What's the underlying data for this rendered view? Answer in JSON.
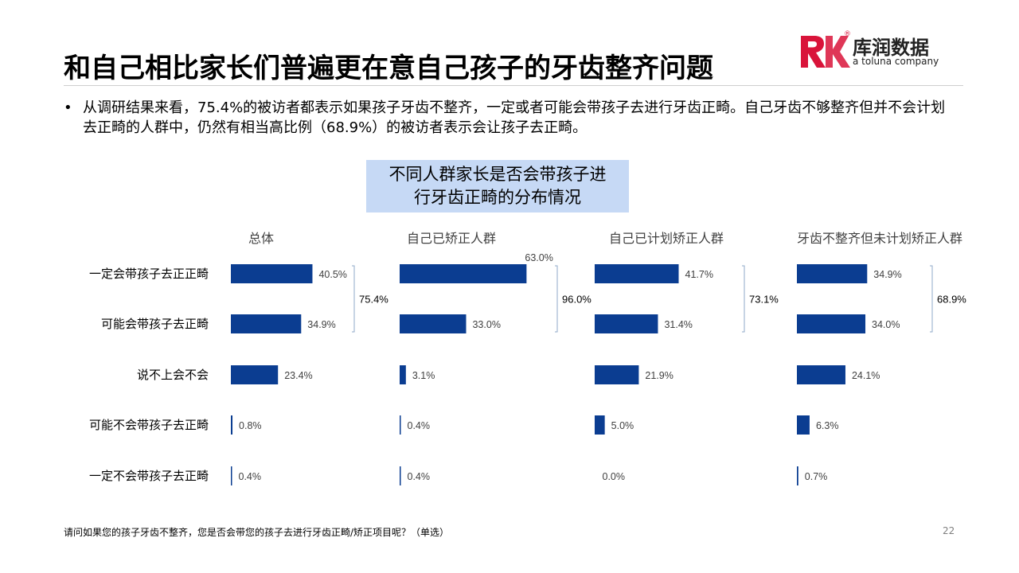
{
  "header": {
    "title": "和自己相比家长们普遍更在意自己孩子的牙齿整齐问题"
  },
  "logo": {
    "name": "库润数据",
    "tagline": "a toluna company",
    "registered_mark": "®",
    "colors": {
      "brand_red": "#d9143a"
    }
  },
  "bullet": {
    "symbol": "•",
    "text": "从调研结果来看，75.4%的被访者都表示如果孩子牙齿不整齐，一定或者可能会带孩子去进行牙齿正畸。自己牙齿不够整齐但并不会计划去正畸的人群中，仍然有相当高比例（68.9%）的被访者表示会让孩子去正畸。"
  },
  "chart_title": "不同人群家长是否会带孩子进行牙齿正畸的分布情况",
  "chart_data": {
    "type": "bar",
    "orientation": "horizontal",
    "bar_color": "#0b3d91",
    "categories": [
      "一定会带孩子去正正畸",
      "可能会带孩子去正畸",
      "说不上会不会",
      "可能不会带孩子去正畸",
      "一定不会带孩子去正畸"
    ],
    "panels": [
      {
        "name": "总体",
        "values": [
          40.5,
          34.9,
          23.4,
          0.8,
          0.4
        ],
        "labels": [
          "40.5%",
          "34.9%",
          "23.4%",
          "0.8%",
          "0.4%"
        ],
        "combined_label": "75.4%"
      },
      {
        "name": "自己已矫正人群",
        "values": [
          63.0,
          33.0,
          3.1,
          0.4,
          0.4
        ],
        "labels": [
          "63.0%",
          "33.0%",
          "3.1%",
          "0.4%",
          "0.4%"
        ],
        "combined_label": "96.0%"
      },
      {
        "name": "自己已计划矫正人群",
        "values": [
          41.7,
          31.4,
          21.9,
          5.0,
          0.0
        ],
        "labels": [
          "41.7%",
          "31.4%",
          "21.9%",
          "5.0%",
          "0.0%"
        ],
        "combined_label": "73.1%"
      },
      {
        "name": "牙齿不整齐但未计划矫正人群",
        "values": [
          34.9,
          34.0,
          24.1,
          6.3,
          0.7
        ],
        "labels": [
          "34.9%",
          "34.0%",
          "24.1%",
          "6.3%",
          "0.7%"
        ],
        "combined_label": "68.9%"
      }
    ]
  },
  "footnote": "请问如果您的孩子牙齿不整齐，您是否会带您的孩子去进行牙齿正畸/矫正项目呢？（单选）",
  "page_number": "22"
}
